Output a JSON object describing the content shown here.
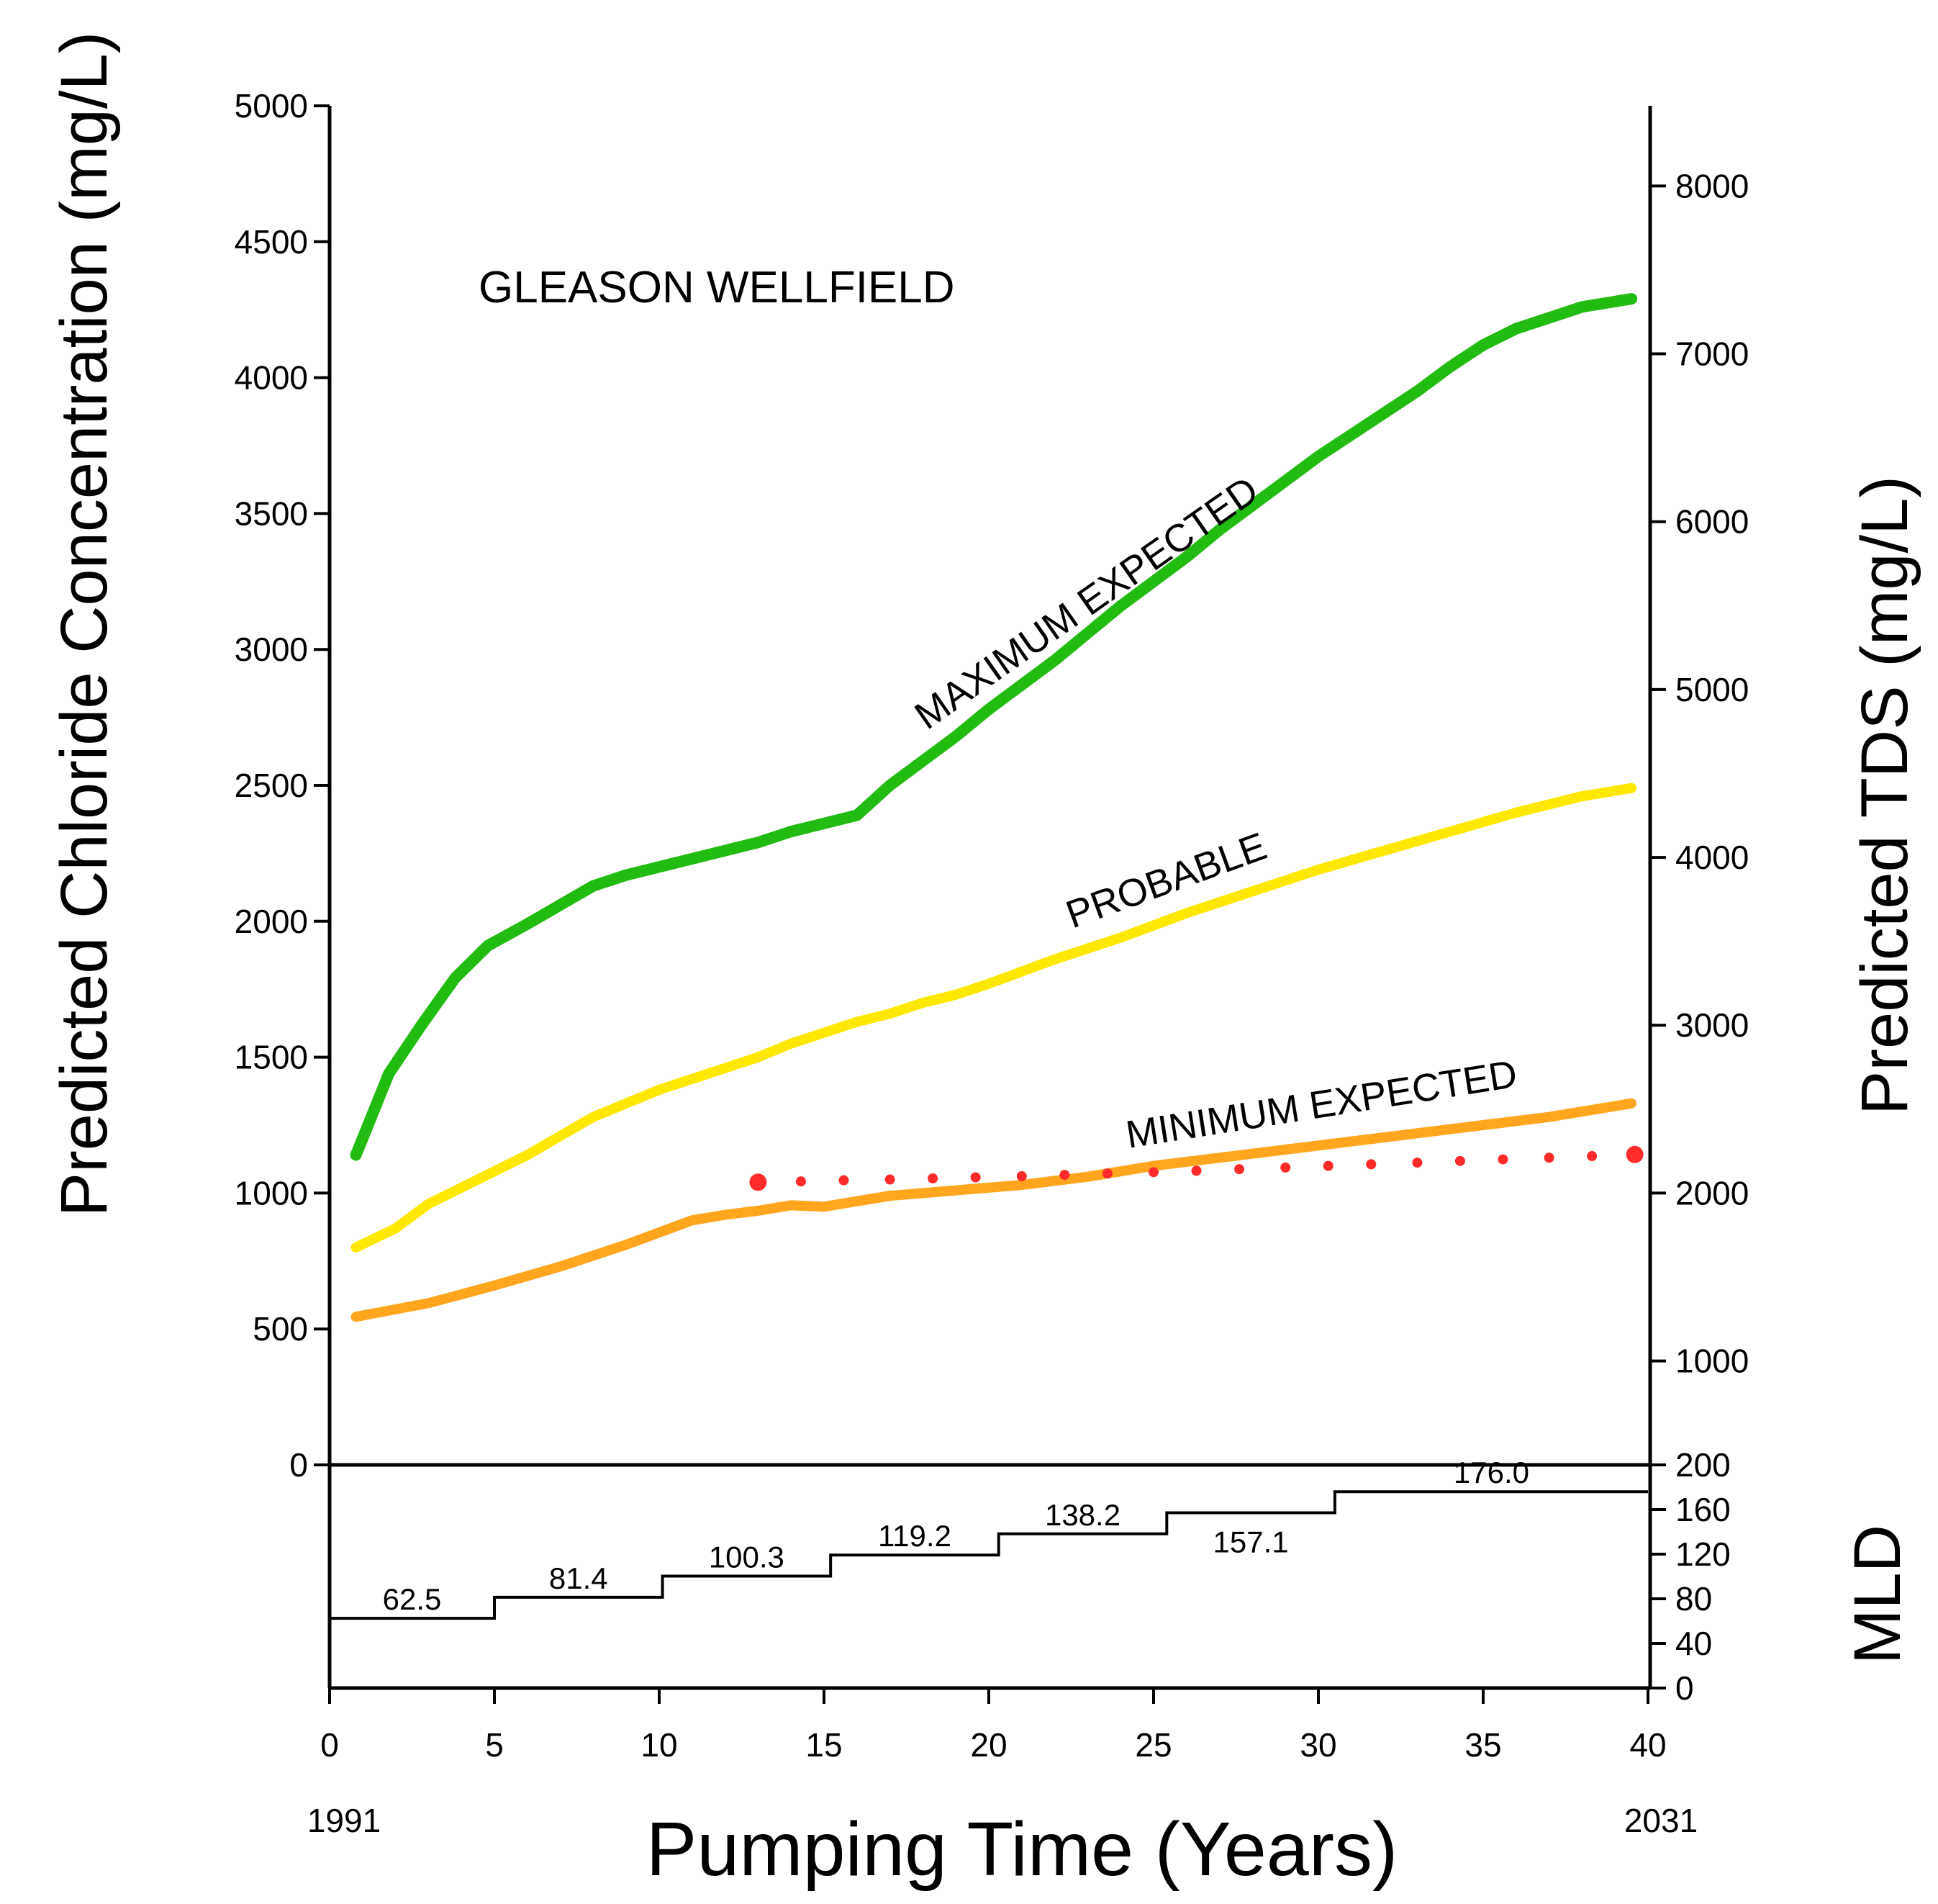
{
  "chart_data": {
    "type": "line",
    "title": "GLEASON WELLFIELD",
    "xlabel": "Pumping Time (Years)",
    "ylabel_left": "Predicted Chloride Concentration (mg/L)",
    "ylabel_right": "Predicted TDS (mg/L)",
    "mld_label": "MLD",
    "start_year": "1991",
    "end_year": "2031",
    "xlim": [
      0,
      40
    ],
    "ylim": [
      0,
      5000
    ],
    "x_ticks": [
      "0",
      "5",
      "10",
      "15",
      "20",
      "25",
      "30",
      "35",
      "40"
    ],
    "y_ticks": [
      "0",
      "500",
      "1000",
      "1500",
      "2000",
      "2500",
      "3000",
      "3500",
      "4000",
      "4500",
      "5000"
    ],
    "tds_ticks": [
      "1000",
      "2000",
      "3000",
      "4000",
      "5000",
      "6000",
      "7000",
      "8000"
    ],
    "mld_ticks": [
      "0",
      "40",
      "80",
      "120",
      "160",
      "200"
    ],
    "series": [
      {
        "name": "MAXIMUM EXPECTED",
        "color": "#22bb11",
        "x": [
          0.8,
          1.8,
          2.8,
          3.8,
          4.8,
          6,
          7,
          8,
          9,
          10,
          12,
          13,
          14,
          15,
          16,
          17,
          18,
          19,
          20,
          21,
          22,
          23,
          24,
          25,
          26,
          27,
          28,
          29,
          30,
          31,
          32,
          33,
          34,
          35,
          36,
          37,
          38,
          39,
          39.5
        ],
        "values": [
          1140,
          1440,
          1620,
          1790,
          1910,
          1990,
          2060,
          2130,
          2170,
          2200,
          2260,
          2290,
          2330,
          2360,
          2390,
          2500,
          2590,
          2680,
          2780,
          2870,
          2960,
          3060,
          3160,
          3250,
          3340,
          3440,
          3530,
          3620,
          3710,
          3790,
          3870,
          3950,
          4040,
          4120,
          4180,
          4220,
          4260,
          4280,
          4290
        ]
      },
      {
        "name": "PROBABLE",
        "color": "#ffe800",
        "x": [
          0.8,
          2,
          3,
          4,
          5,
          6,
          7,
          8,
          9,
          10,
          11,
          12,
          13,
          14,
          15,
          16,
          17,
          18,
          19,
          20,
          22,
          24,
          26,
          28,
          30,
          32,
          34,
          36,
          38,
          39.5
        ],
        "values": [
          800,
          870,
          960,
          1020,
          1080,
          1140,
          1210,
          1280,
          1330,
          1380,
          1420,
          1460,
          1500,
          1550,
          1590,
          1630,
          1660,
          1700,
          1730,
          1770,
          1860,
          1940,
          2030,
          2110,
          2190,
          2260,
          2330,
          2400,
          2460,
          2490
        ]
      },
      {
        "name": "MINIMUM EXPECTED",
        "color": "#ffa51e",
        "x": [
          0.8,
          3,
          5,
          7,
          9,
          11,
          12,
          13,
          14,
          15,
          17,
          19,
          21,
          23,
          25,
          27,
          29,
          31,
          33,
          35,
          37,
          39.5
        ],
        "values": [
          545,
          595,
          660,
          730,
          810,
          900,
          920,
          935,
          955,
          950,
          990,
          1010,
          1030,
          1060,
          1100,
          1130,
          1160,
          1190,
          1220,
          1250,
          1280,
          1330
        ]
      },
      {
        "name": "red dotted",
        "color": "#ff2b2b",
        "style": "dotted",
        "x": [
          13,
          14.3,
          15.6,
          17,
          18.3,
          19.6,
          21,
          22.3,
          23.6,
          25,
          26.3,
          27.6,
          29,
          30.3,
          31.6,
          33,
          34.3,
          35.6,
          37,
          38.3,
          39.6
        ],
        "values": [
          1040,
          1043,
          1047,
          1050,
          1054,
          1058,
          1062,
          1067,
          1072,
          1077,
          1082,
          1088,
          1094,
          1100,
          1106,
          1112,
          1118,
          1124,
          1130,
          1136,
          1142
        ]
      }
    ],
    "mld_steps": [
      {
        "x_start": 0,
        "x_end": 5,
        "value": 62.5,
        "label": "62.5"
      },
      {
        "x_start": 5,
        "x_end": 10.1,
        "value": 81.4,
        "label": "81.4"
      },
      {
        "x_start": 10.1,
        "x_end": 15.2,
        "value": 100.3,
        "label": "100.3"
      },
      {
        "x_start": 15.2,
        "x_end": 20.3,
        "value": 119.2,
        "label": "119.2"
      },
      {
        "x_start": 20.3,
        "x_end": 25.4,
        "value": 138.2,
        "label": "138.2"
      },
      {
        "x_start": 25.4,
        "x_end": 30.5,
        "value": 157.1,
        "label": "157.1"
      },
      {
        "x_start": 30.5,
        "x_end": 40,
        "value": 176.0,
        "label": "176.0"
      }
    ]
  }
}
